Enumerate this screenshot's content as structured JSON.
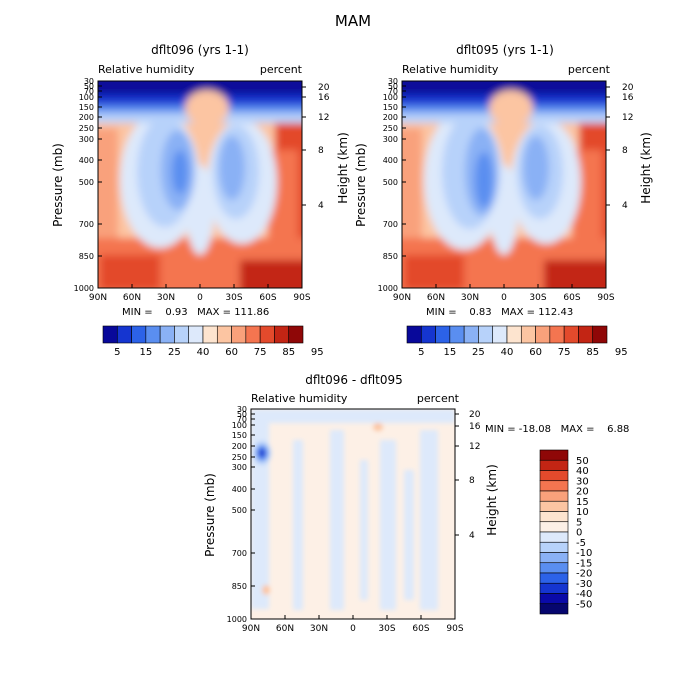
{
  "figure_title": "MAM",
  "chart_data": [
    {
      "type": "heatmap",
      "id": "panel1",
      "title": "dflt096 (yrs 1-1)",
      "subtitle_left": "Relative humidity",
      "subtitle_right": "percent",
      "ylabel": "Pressure (mb)",
      "ylabel_right": "Height (km)",
      "x_ticks": [
        "90N",
        "60N",
        "30N",
        "0",
        "30S",
        "60S",
        "90S"
      ],
      "y_ticks": [
        "30",
        "50",
        "70",
        "100",
        "150",
        "200",
        "250",
        "300",
        "400",
        "500",
        "700",
        "850",
        "1000"
      ],
      "y_ticks_right": [
        "20",
        "16",
        "12",
        "8",
        "4"
      ],
      "min_max_text": "MIN =    0.93   MAX = 111.86",
      "colorbar_labels": [
        "5",
        "15",
        "25",
        "40",
        "60",
        "75",
        "85",
        "95"
      ]
    },
    {
      "type": "heatmap",
      "id": "panel2",
      "title": "dflt095 (yrs 1-1)",
      "subtitle_left": "Relative humidity",
      "subtitle_right": "percent",
      "ylabel": "Pressure (mb)",
      "ylabel_right": "Height (km)",
      "x_ticks": [
        "90N",
        "60N",
        "30N",
        "0",
        "30S",
        "60S",
        "90S"
      ],
      "y_ticks": [
        "30",
        "50",
        "70",
        "100",
        "150",
        "200",
        "250",
        "300",
        "400",
        "500",
        "700",
        "850",
        "1000"
      ],
      "y_ticks_right": [
        "20",
        "16",
        "12",
        "8",
        "4"
      ],
      "min_max_text": "MIN =    0.83   MAX = 112.43",
      "colorbar_labels": [
        "5",
        "15",
        "25",
        "40",
        "60",
        "75",
        "85",
        "95"
      ]
    },
    {
      "type": "heatmap",
      "id": "panel3",
      "title": "dflt096 - dflt095",
      "subtitle_left": "Relative humidity",
      "subtitle_right": "percent",
      "ylabel": "Pressure (mb)",
      "ylabel_right": "Height (km)",
      "x_ticks": [
        "90N",
        "60N",
        "30N",
        "0",
        "30S",
        "60S",
        "90S"
      ],
      "y_ticks": [
        "30",
        "50",
        "70",
        "100",
        "150",
        "200",
        "250",
        "300",
        "400",
        "500",
        "700",
        "850",
        "1000"
      ],
      "y_ticks_right": [
        "20",
        "16",
        "12",
        "8",
        "4"
      ],
      "min_max_text": "MIN = -18.08   MAX =    6.88",
      "colorbar_labels": [
        "50",
        "40",
        "30",
        "20",
        "15",
        "10",
        "5",
        "0",
        "-5",
        "-10",
        "-15",
        "-20",
        "-30",
        "-40",
        "-50"
      ]
    }
  ],
  "colors": {
    "rh_scale": [
      "#08089a",
      "#1535d0",
      "#2c62e8",
      "#5a8ef0",
      "#8ab1f5",
      "#b7d2fa",
      "#dde9fb",
      "#fde4cf",
      "#fcc5a2",
      "#f9a17b",
      "#f47550",
      "#e34a2c",
      "#c32514",
      "#8f0707"
    ],
    "diff_scale": [
      "#8f0707",
      "#c32514",
      "#e34a2c",
      "#f47550",
      "#f9a17b",
      "#fcc5a2",
      "#fde4cf",
      "#fdf0e6",
      "#dde9fb",
      "#b7d2fa",
      "#8ab1f5",
      "#5a8ef0",
      "#2c62e8",
      "#1535d0",
      "#0a0aa8",
      "#06066e"
    ]
  }
}
